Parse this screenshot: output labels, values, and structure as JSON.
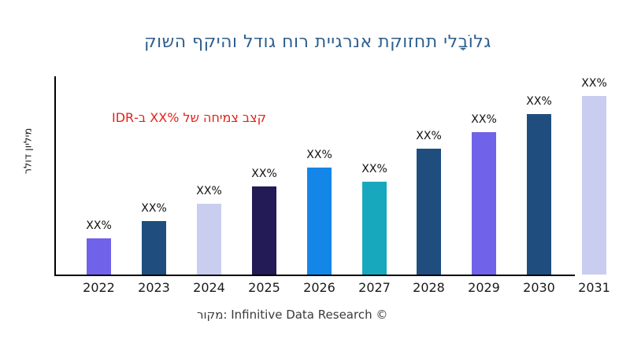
{
  "chart_data": {
    "type": "bar",
    "title": "גלוֹבָלי תחזוקת אנרגיית רוח גודל והיקף השוק",
    "annotation": "קצב צמיחה של XX%‎ ב-IDR",
    "ylabel": "מיליון דולר",
    "caption": "מקור: Infinitive Data Research ©",
    "categories": [
      "2022",
      "2023",
      "2024",
      "2025",
      "2026",
      "2027",
      "2028",
      "2029",
      "2030",
      "2031"
    ],
    "bar_value_labels": [
      "XX%",
      "XX%",
      "XX%",
      "XX%",
      "XX%",
      "XX%",
      "XX%",
      "XX%",
      "XX%",
      "XX%"
    ],
    "values_relative": [
      46,
      68,
      90,
      112,
      136,
      118,
      160,
      181,
      204,
      227
    ],
    "bar_colors": [
      "#7062e9",
      "#1f4e7e",
      "#c9cdf0",
      "#221b55",
      "#1486e8",
      "#17a8bd",
      "#1f4e7e",
      "#7062e9",
      "#1f4e7e",
      "#c9cdf0"
    ],
    "colors": {
      "title": "#2f5e8d",
      "annotation": "#e32219",
      "axis": "#000000",
      "tick_labels": "#1a1a1a",
      "caption": "#3a3a3a",
      "background": "#ffffff"
    },
    "grid": false,
    "legend": false,
    "y_axis_ticks": []
  }
}
